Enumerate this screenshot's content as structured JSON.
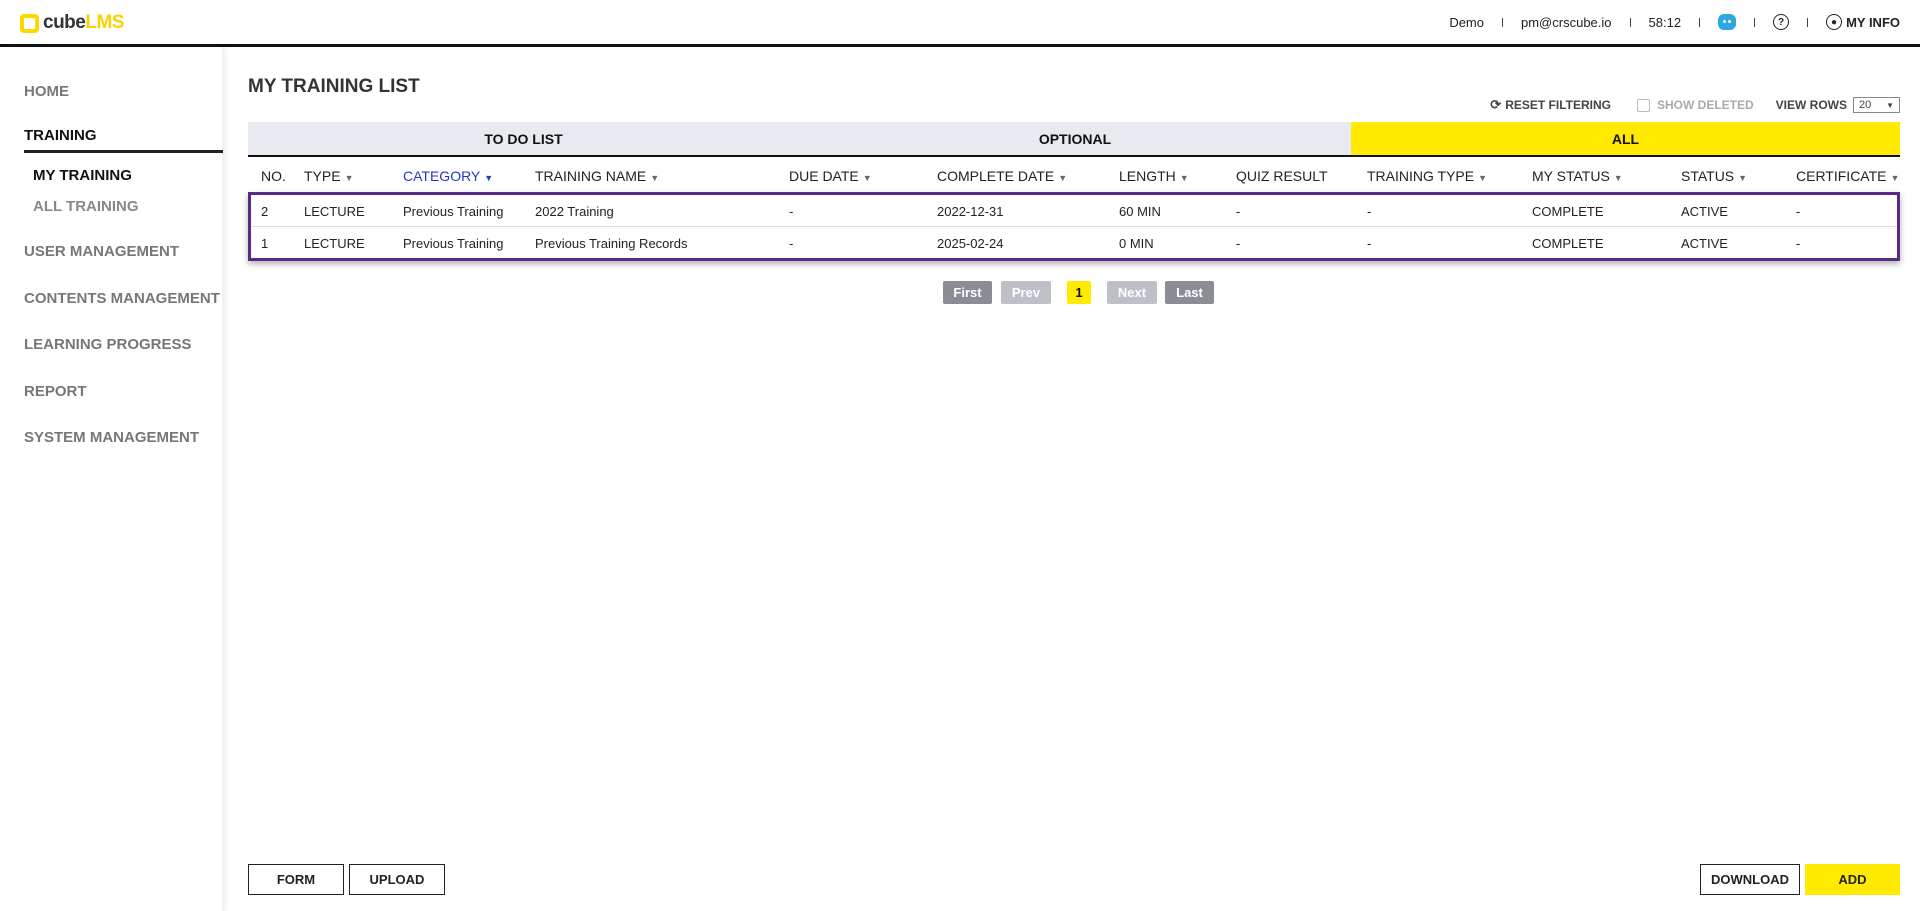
{
  "app": {
    "logo_cube": "cube",
    "logo_lms": "LMS"
  },
  "header": {
    "user": "Demo",
    "email": "pm@crscube.io",
    "timer": "58:12",
    "help_icon": "question-circle-icon",
    "chatbot_icon": "chatbot-icon",
    "my_info": "MY INFO"
  },
  "sidebar": {
    "items": [
      {
        "label": "HOME"
      },
      {
        "label": "TRAINING",
        "active": true
      },
      {
        "label": "USER MANAGEMENT"
      },
      {
        "label": "CONTENTS MANAGEMENT"
      },
      {
        "label": "LEARNING PROGRESS"
      },
      {
        "label": "REPORT"
      },
      {
        "label": "SYSTEM MANAGEMENT"
      }
    ],
    "sub_items": [
      {
        "label": "MY TRAINING",
        "active": true
      },
      {
        "label": "ALL TRAINING"
      }
    ]
  },
  "page": {
    "title": "MY TRAINING LIST",
    "reset_filtering": "RESET FILTERING",
    "show_deleted": "SHOW DELETED",
    "view_rows_label": "VIEW ROWS",
    "view_rows_value": "20"
  },
  "tabs": [
    {
      "label": "TO DO LIST"
    },
    {
      "label": "OPTIONAL"
    },
    {
      "label": "ALL",
      "active": true
    }
  ],
  "table": {
    "columns": [
      "NO.",
      "TYPE",
      "CATEGORY",
      "TRAINING NAME",
      "DUE DATE",
      "COMPLETE DATE",
      "LENGTH",
      "QUIZ RESULT",
      "TRAINING TYPE",
      "MY STATUS",
      "STATUS",
      "CERTIFICATE"
    ],
    "rows": [
      [
        "2",
        "LECTURE",
        "Previous Training",
        "2022 Training",
        "-",
        "2022-12-31",
        "60 MIN",
        "-",
        "-",
        "COMPLETE",
        "ACTIVE",
        "-"
      ],
      [
        "1",
        "LECTURE",
        "Previous Training",
        "Previous Training Records",
        "-",
        "2025-02-24",
        "0 MIN",
        "-",
        "-",
        "COMPLETE",
        "ACTIVE",
        "-"
      ]
    ]
  },
  "pagination": {
    "first": "First",
    "prev": "Prev",
    "current": "1",
    "next": "Next",
    "last": "Last"
  },
  "buttons": {
    "form": "FORM",
    "upload": "UPLOAD",
    "download": "DOWNLOAD",
    "add": "ADD"
  },
  "colors": {
    "accent": "#ffea00",
    "selection": "#5a2a86",
    "sorted": "#2038c8"
  }
}
